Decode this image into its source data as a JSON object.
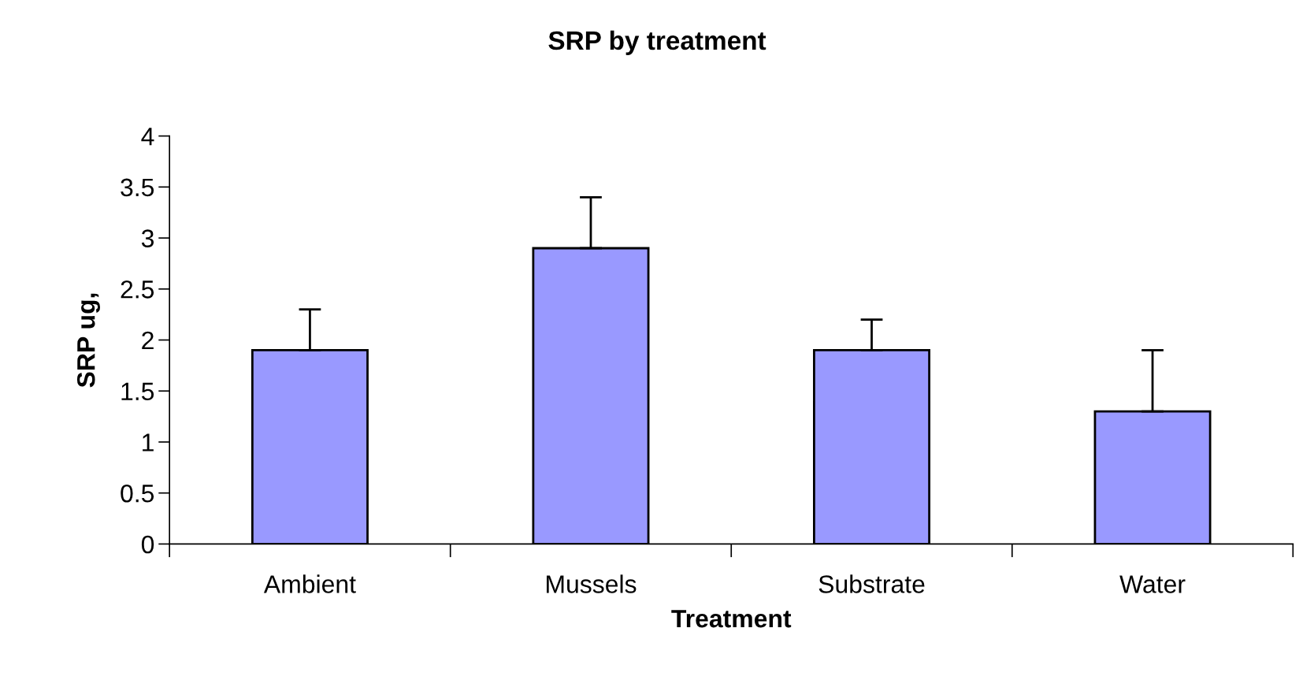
{
  "chart_data": {
    "type": "bar",
    "title": "SRP by treatment",
    "xlabel": "Treatment",
    "ylabel": "SRP ug,",
    "categories": [
      "Ambient",
      "Mussels",
      "Substrate",
      "Water"
    ],
    "values": [
      1.9,
      2.9,
      1.9,
      1.3
    ],
    "errors": [
      [
        1.9,
        2.3
      ],
      [
        2.9,
        3.4
      ],
      [
        1.9,
        2.2
      ],
      [
        1.3,
        1.9
      ]
    ],
    "color": "#9999ff",
    "ylim": [
      0,
      4
    ],
    "yticks": [
      0,
      0.5,
      1,
      1.5,
      2,
      2.5,
      3,
      3.5,
      4
    ],
    "grid": false,
    "legend": false
  }
}
